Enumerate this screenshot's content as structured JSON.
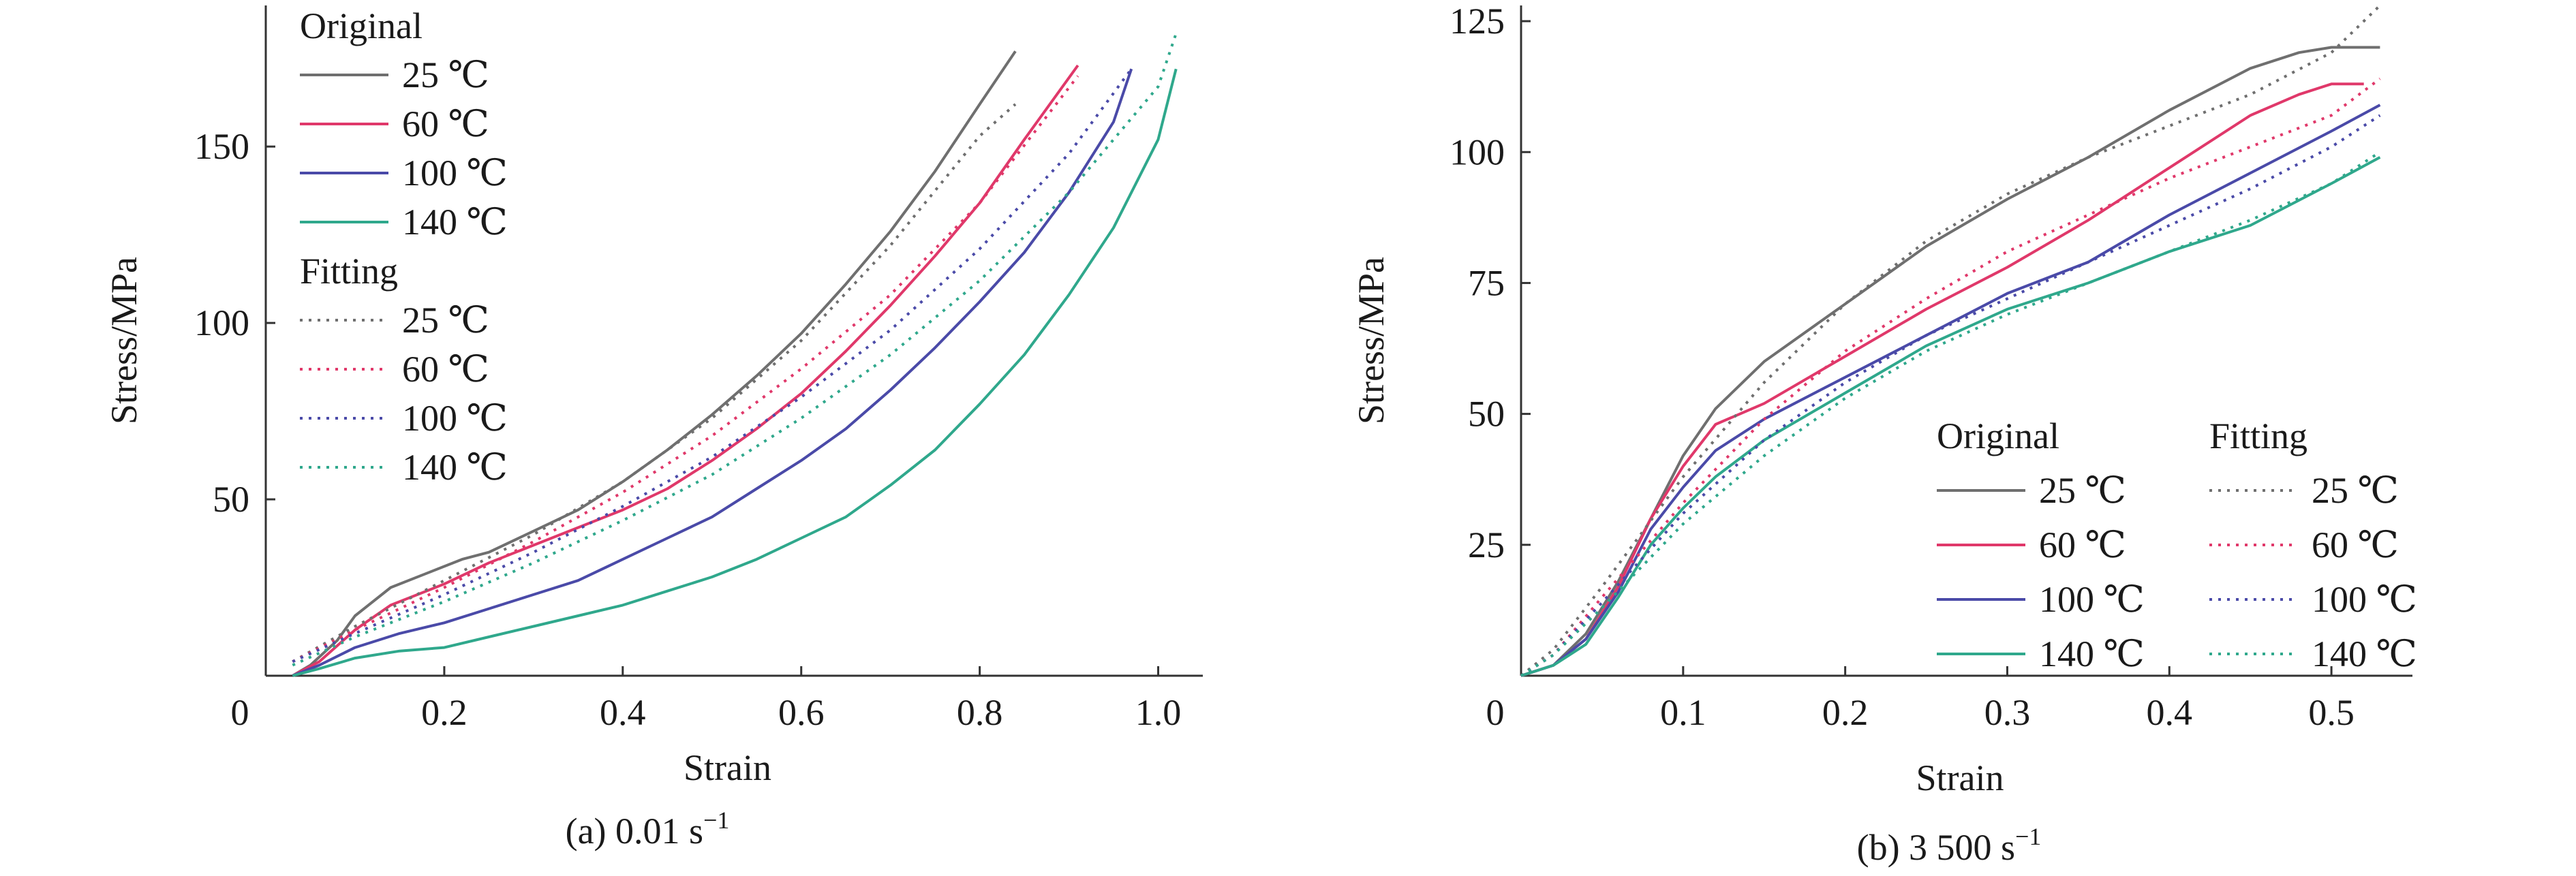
{
  "colors": {
    "t25": "#6f6f6f",
    "t60": "#e0386a",
    "t100": "#4a4aa8",
    "t140": "#2fa88c",
    "axis": "#333333"
  },
  "chart_data": [
    {
      "type": "line",
      "panel_label": "(a) 0.01 s",
      "panel_sup": "−1",
      "xlabel": "Strain",
      "ylabel": "Stress/MPa",
      "xlim": [
        0,
        1.05
      ],
      "ylim": [
        0,
        190
      ],
      "x_ticks": [
        "0",
        "0.2",
        "0.4",
        "0.6",
        "0.8",
        "1.0"
      ],
      "x_tick_values": [
        0,
        0.2,
        0.4,
        0.6,
        0.8,
        1.0
      ],
      "y_ticks": [
        "50",
        "100",
        "150"
      ],
      "y_tick_values": [
        50,
        100,
        150
      ],
      "legend": {
        "placement": "top-left",
        "original_title": "Original",
        "fitting_title": "Fitting",
        "labels": [
          "25 ℃",
          "60 ℃",
          "100 ℃",
          "140 ℃"
        ]
      },
      "series": [
        {
          "name": "25 ℃",
          "group": "Original",
          "style": "solid",
          "color": "t25",
          "x": [
            0.03,
            0.05,
            0.08,
            0.1,
            0.14,
            0.18,
            0.22,
            0.25,
            0.3,
            0.35,
            0.4,
            0.45,
            0.5,
            0.55,
            0.6,
            0.65,
            0.7,
            0.75,
            0.8,
            0.84
          ],
          "y": [
            0,
            3,
            10,
            17,
            25,
            29,
            33,
            35,
            41,
            47,
            55,
            64,
            74,
            85,
            97,
            111,
            126,
            143,
            162,
            177
          ]
        },
        {
          "name": "60 ℃",
          "group": "Original",
          "style": "solid",
          "color": "t60",
          "x": [
            0.03,
            0.06,
            0.1,
            0.14,
            0.2,
            0.25,
            0.3,
            0.35,
            0.4,
            0.45,
            0.5,
            0.55,
            0.6,
            0.65,
            0.7,
            0.75,
            0.8,
            0.85,
            0.91
          ],
          "y": [
            0,
            4,
            13,
            20,
            26,
            32,
            37,
            42,
            47,
            53,
            61,
            70,
            80,
            92,
            105,
            119,
            134,
            152,
            173
          ]
        },
        {
          "name": "100 ℃",
          "group": "Original",
          "style": "solid",
          "color": "t100",
          "x": [
            0.03,
            0.06,
            0.1,
            0.15,
            0.2,
            0.25,
            0.3,
            0.35,
            0.4,
            0.45,
            0.5,
            0.55,
            0.6,
            0.65,
            0.7,
            0.75,
            0.8,
            0.85,
            0.9,
            0.95,
            0.97
          ],
          "y": [
            0,
            3,
            8,
            12,
            15,
            19,
            23,
            27,
            33,
            39,
            45,
            53,
            61,
            70,
            81,
            93,
            106,
            120,
            137,
            157,
            172
          ]
        },
        {
          "name": "140 ℃",
          "group": "Original",
          "style": "solid",
          "color": "t140",
          "x": [
            0.03,
            0.06,
            0.1,
            0.15,
            0.2,
            0.25,
            0.3,
            0.35,
            0.4,
            0.45,
            0.5,
            0.55,
            0.6,
            0.65,
            0.7,
            0.75,
            0.8,
            0.85,
            0.9,
            0.95,
            1.0,
            1.02
          ],
          "y": [
            0,
            2,
            5,
            7,
            8,
            11,
            14,
            17,
            20,
            24,
            28,
            33,
            39,
            45,
            54,
            64,
            77,
            91,
            108,
            127,
            152,
            172
          ]
        },
        {
          "name": "25 ℃",
          "group": "Fitting",
          "style": "dotted",
          "color": "t25",
          "x": [
            0.03,
            0.1,
            0.2,
            0.3,
            0.4,
            0.5,
            0.6,
            0.7,
            0.8,
            0.84
          ],
          "y": [
            4,
            14,
            27,
            40,
            55,
            73,
            95,
            122,
            153,
            162
          ]
        },
        {
          "name": "60 ℃",
          "group": "Fitting",
          "style": "dotted",
          "color": "t60",
          "x": [
            0.03,
            0.1,
            0.2,
            0.3,
            0.4,
            0.5,
            0.6,
            0.7,
            0.8,
            0.91
          ],
          "y": [
            4,
            13,
            25,
            38,
            52,
            68,
            87,
            108,
            134,
            170
          ]
        },
        {
          "name": "100 ℃",
          "group": "Fitting",
          "style": "dotted",
          "color": "t100",
          "x": [
            0.03,
            0.1,
            0.2,
            0.3,
            0.4,
            0.5,
            0.6,
            0.7,
            0.8,
            0.9,
            0.97
          ],
          "y": [
            4,
            12,
            23,
            35,
            48,
            62,
            79,
            98,
            121,
            148,
            172
          ]
        },
        {
          "name": "140 ℃",
          "group": "Fitting",
          "style": "dotted",
          "color": "t140",
          "x": [
            0.03,
            0.1,
            0.2,
            0.3,
            0.4,
            0.5,
            0.6,
            0.7,
            0.8,
            0.9,
            1.0,
            1.02
          ],
          "y": [
            3,
            11,
            21,
            32,
            44,
            57,
            73,
            91,
            112,
            137,
            167,
            182
          ]
        }
      ]
    },
    {
      "type": "line",
      "panel_label": "(b) 3 500 s",
      "panel_sup": "−1",
      "xlabel": "Strain",
      "ylabel": "Stress/MPa",
      "xlim": [
        0,
        0.55
      ],
      "ylim": [
        0,
        128
      ],
      "x_ticks": [
        "0",
        "0.1",
        "0.2",
        "0.3",
        "0.4",
        "0.5"
      ],
      "x_tick_values": [
        0,
        0.1,
        0.2,
        0.3,
        0.4,
        0.5
      ],
      "y_ticks": [
        "25",
        "50",
        "75",
        "100",
        "125"
      ],
      "y_tick_values": [
        25,
        50,
        75,
        100,
        125
      ],
      "legend": {
        "placement": "bottom-right",
        "original_title": "Original",
        "fitting_title": "Fitting",
        "labels": [
          "25 ℃",
          "60 ℃",
          "100 ℃",
          "140 ℃"
        ]
      },
      "series": [
        {
          "name": "25 ℃",
          "group": "Original",
          "style": "solid",
          "color": "t25",
          "x": [
            0,
            0.02,
            0.04,
            0.06,
            0.08,
            0.1,
            0.12,
            0.15,
            0.2,
            0.25,
            0.3,
            0.35,
            0.4,
            0.45,
            0.48,
            0.5,
            0.53
          ],
          "y": [
            0,
            2,
            8,
            18,
            30,
            42,
            51,
            60,
            71,
            82,
            91,
            99,
            108,
            116,
            119,
            120,
            120
          ]
        },
        {
          "name": "60 ℃",
          "group": "Original",
          "style": "solid",
          "color": "t60",
          "x": [
            0,
            0.02,
            0.04,
            0.06,
            0.08,
            0.1,
            0.12,
            0.15,
            0.2,
            0.25,
            0.3,
            0.35,
            0.4,
            0.45,
            0.48,
            0.5,
            0.52
          ],
          "y": [
            0,
            2,
            7,
            17,
            30,
            40,
            48,
            52,
            61,
            70,
            78,
            87,
            97,
            107,
            111,
            113,
            113
          ]
        },
        {
          "name": "100 ℃",
          "group": "Original",
          "style": "solid",
          "color": "t100",
          "x": [
            0,
            0.02,
            0.04,
            0.06,
            0.08,
            0.1,
            0.12,
            0.15,
            0.2,
            0.25,
            0.3,
            0.35,
            0.4,
            0.45,
            0.5,
            0.53
          ],
          "y": [
            0,
            2,
            7,
            16,
            28,
            36,
            43,
            49,
            57,
            65,
            73,
            79,
            88,
            96,
            104,
            109
          ]
        },
        {
          "name": "140 ℃",
          "group": "Original",
          "style": "solid",
          "color": "t140",
          "x": [
            0,
            0.02,
            0.04,
            0.06,
            0.08,
            0.1,
            0.12,
            0.15,
            0.2,
            0.25,
            0.3,
            0.35,
            0.4,
            0.45,
            0.5,
            0.53
          ],
          "y": [
            0,
            2,
            6,
            15,
            25,
            32,
            38,
            45,
            54,
            63,
            70,
            75,
            81,
            86,
            94,
            99
          ]
        },
        {
          "name": "25 ℃",
          "group": "Fitting",
          "style": "dotted",
          "color": "t25",
          "x": [
            0,
            0.02,
            0.05,
            0.1,
            0.15,
            0.2,
            0.25,
            0.3,
            0.35,
            0.4,
            0.45,
            0.5,
            0.53
          ],
          "y": [
            0,
            5,
            17,
            38,
            56,
            71,
            83,
            92,
            99,
            105,
            111,
            119,
            128
          ]
        },
        {
          "name": "60 ℃",
          "group": "Fitting",
          "style": "dotted",
          "color": "t60",
          "x": [
            0,
            0.02,
            0.05,
            0.1,
            0.15,
            0.2,
            0.25,
            0.3,
            0.35,
            0.4,
            0.45,
            0.5,
            0.53
          ],
          "y": [
            0,
            4,
            15,
            33,
            49,
            62,
            72,
            81,
            88,
            95,
            101,
            107,
            114
          ]
        },
        {
          "name": "100 ℃",
          "group": "Fitting",
          "style": "dotted",
          "color": "t100",
          "x": [
            0,
            0.02,
            0.05,
            0.1,
            0.15,
            0.2,
            0.25,
            0.3,
            0.35,
            0.4,
            0.45,
            0.5,
            0.53
          ],
          "y": [
            0,
            4,
            14,
            31,
            45,
            56,
            65,
            72,
            79,
            86,
            93,
            101,
            107
          ]
        },
        {
          "name": "140 ℃",
          "group": "Fitting",
          "style": "dotted",
          "color": "t140",
          "x": [
            0,
            0.02,
            0.05,
            0.1,
            0.15,
            0.2,
            0.25,
            0.3,
            0.35,
            0.4,
            0.45,
            0.5,
            0.53
          ],
          "y": [
            0,
            4,
            13,
            29,
            42,
            53,
            62,
            69,
            75,
            81,
            87,
            94,
            100
          ]
        }
      ]
    }
  ]
}
